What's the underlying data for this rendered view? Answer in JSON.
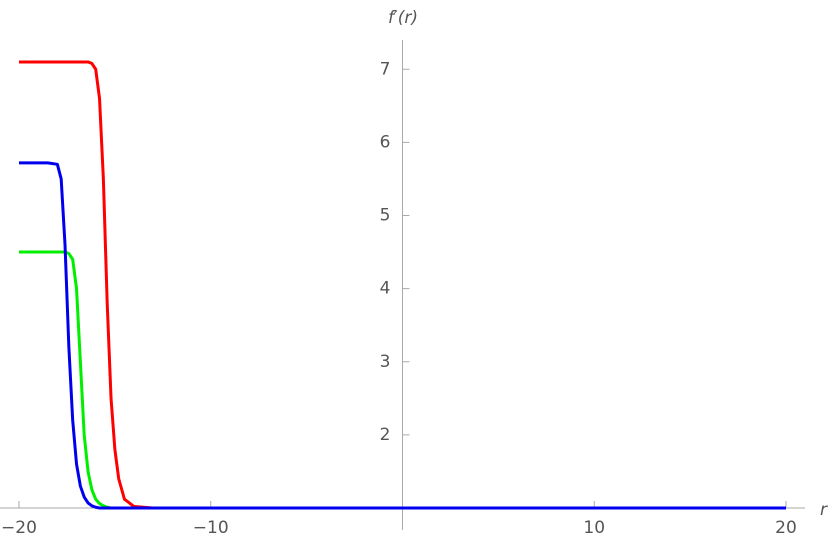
{
  "chart_data": {
    "type": "line",
    "x_label": "r",
    "y_label": "f′(r)",
    "x": [
      -20,
      -19,
      -18.5,
      -18,
      -17.8,
      -17.6,
      -17.4,
      -17.2,
      -17,
      -16.8,
      -16.6,
      -16.4,
      -16.2,
      -16,
      -15.8,
      -15.6,
      -15.4,
      -15.2,
      -15,
      -14.8,
      -14.5,
      -14,
      -13,
      -10,
      0,
      10,
      20
    ],
    "series": [
      {
        "name": "red",
        "color": "#ff0000",
        "values": [
          7.1,
          7.1,
          7.1,
          7.1,
          7.1,
          7.1,
          7.1,
          7.1,
          7.1,
          7.1,
          7.1,
          7.1,
          7.08,
          7.0,
          6.6,
          5.5,
          3.8,
          2.5,
          1.8,
          1.4,
          1.12,
          1.02,
          1,
          1,
          1,
          1,
          1
        ]
      },
      {
        "name": "green",
        "color": "#00ee00",
        "values": [
          4.5,
          4.5,
          4.5,
          4.5,
          4.5,
          4.5,
          4.48,
          4.4,
          4.0,
          3.0,
          2.0,
          1.5,
          1.25,
          1.12,
          1.06,
          1.03,
          1.01,
          1,
          1,
          1,
          1,
          1,
          1,
          1,
          1,
          1,
          1
        ]
      },
      {
        "name": "blue",
        "color": "#0000ee",
        "values": [
          5.72,
          5.72,
          5.72,
          5.7,
          5.5,
          4.6,
          3.2,
          2.2,
          1.6,
          1.3,
          1.15,
          1.07,
          1.03,
          1.01,
          1,
          1,
          1,
          1,
          1,
          1,
          1,
          1,
          1,
          1,
          1,
          1,
          1
        ]
      }
    ],
    "xlim": [
      -20,
      20
    ],
    "ylim": [
      1,
      7.4
    ],
    "xticks": [
      {
        "value": -20,
        "label": "−20"
      },
      {
        "value": -10,
        "label": "−10"
      },
      10,
      20
    ],
    "yticks": [
      2,
      3,
      4,
      5,
      6,
      7
    ]
  }
}
